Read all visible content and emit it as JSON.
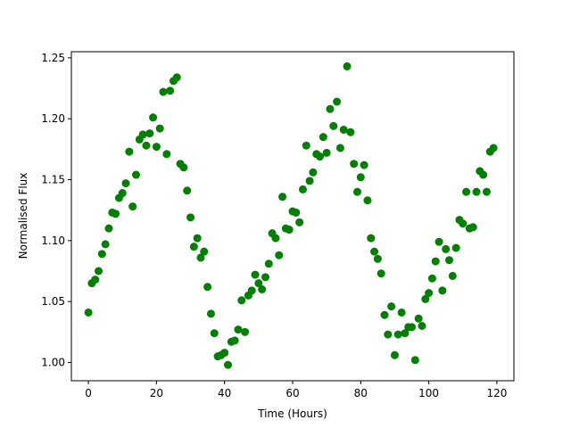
{
  "chart_data": {
    "type": "scatter",
    "xlabel": "Time (Hours)",
    "ylabel": "Normalised Flux",
    "xlim": [
      -5,
      125
    ],
    "ylim": [
      0.985,
      1.255
    ],
    "xticks": [
      0,
      20,
      40,
      60,
      80,
      100,
      120
    ],
    "xtick_labels": [
      "0",
      "20",
      "40",
      "60",
      "80",
      "100",
      "120"
    ],
    "yticks": [
      1.0,
      1.05,
      1.1,
      1.15,
      1.2,
      1.25
    ],
    "ytick_labels": [
      "1.00",
      "1.05",
      "1.10",
      "1.15",
      "1.20",
      "1.25"
    ],
    "grid": false,
    "marker_color": "#008000",
    "series": [
      {
        "x": [
          0,
          1,
          2,
          3,
          4,
          5,
          6,
          7,
          8,
          9,
          10,
          11,
          12,
          13,
          14,
          15,
          16,
          17,
          18,
          19,
          20,
          21,
          22,
          23,
          24,
          25,
          26,
          27,
          28,
          29,
          30,
          31,
          32,
          33,
          34,
          35,
          36,
          37,
          38,
          39,
          40,
          41,
          42,
          43,
          44,
          45,
          46,
          47,
          48,
          49,
          50,
          51,
          52,
          53,
          54,
          55,
          56,
          57,
          58,
          59,
          60,
          61,
          62,
          63,
          64,
          65,
          66,
          67,
          68,
          69,
          70,
          71,
          72,
          73,
          74,
          75,
          76,
          77,
          78,
          79,
          80,
          81,
          82,
          83,
          84,
          85,
          86,
          87,
          88,
          89,
          90,
          91,
          92,
          93,
          94,
          95,
          96,
          97,
          98,
          99,
          100,
          101,
          102,
          103,
          104,
          105,
          106,
          107,
          108,
          109,
          110,
          111,
          112,
          113,
          114,
          115,
          116,
          117,
          118,
          119
        ],
        "y": [
          1.041,
          1.065,
          1.068,
          1.075,
          1.089,
          1.097,
          1.11,
          1.123,
          1.122,
          1.135,
          1.139,
          1.147,
          1.173,
          1.128,
          1.154,
          1.183,
          1.187,
          1.178,
          1.188,
          1.201,
          1.177,
          1.192,
          1.222,
          1.171,
          1.223,
          1.231,
          1.234,
          1.163,
          1.16,
          1.141,
          1.119,
          1.095,
          1.102,
          1.086,
          1.091,
          1.062,
          1.04,
          1.024,
          1.005,
          1.006,
          1.008,
          0.998,
          1.017,
          1.018,
          1.027,
          1.051,
          1.025,
          1.055,
          1.059,
          1.072,
          1.065,
          1.06,
          1.07,
          1.081,
          1.106,
          1.102,
          1.088,
          1.136,
          1.11,
          1.109,
          1.124,
          1.123,
          1.115,
          1.142,
          1.178,
          1.149,
          1.156,
          1.171,
          1.169,
          1.185,
          1.172,
          1.208,
          1.194,
          1.214,
          1.176,
          1.191,
          1.243,
          1.189,
          1.163,
          1.14,
          1.152,
          1.162,
          1.133,
          1.102,
          1.091,
          1.085,
          1.073,
          1.039,
          1.023,
          1.046,
          1.006,
          1.023,
          1.041,
          1.024,
          1.029,
          1.029,
          1.002,
          1.036,
          1.03,
          1.052,
          1.057,
          1.069,
          1.083,
          1.099,
          1.059,
          1.093,
          1.084,
          1.071,
          1.094,
          1.117,
          1.114,
          1.14,
          1.11,
          1.111,
          1.14,
          1.157,
          1.154,
          1.14,
          1.173,
          1.176
        ]
      }
    ]
  }
}
